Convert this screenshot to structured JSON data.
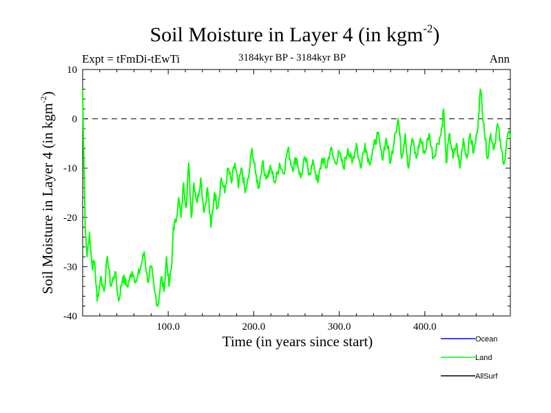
{
  "chart_data": {
    "type": "line",
    "title": "Soil Moisture in Layer 4 (in kgm",
    "title_superscript": "-2",
    "title_close": ")",
    "subtitle_left": "Expt = tFmDi-tEwTi",
    "subtitle_center": "3184kyr BP - 3184kyr BP",
    "subtitle_right": "Ann",
    "xlabel": "Time (in years since start)",
    "ylabel": "Soil Moisture in Layer 4 (in kgm",
    "ylabel_superscript": "-2",
    "ylabel_close": ")",
    "xlim": [
      0,
      500
    ],
    "ylim": [
      -40,
      10
    ],
    "x_ticks": [
      100,
      200,
      300,
      400
    ],
    "x_tick_labels": [
      "100.0",
      "200.0",
      "300.0",
      "400.0"
    ],
    "y_ticks": [
      10,
      0,
      -10,
      -20,
      -30,
      -40
    ],
    "y_tick_labels": [
      "10",
      "0",
      "-10",
      "-20",
      "-30",
      "-40"
    ],
    "reference_line": 0,
    "series": [
      {
        "name": "Ocean",
        "color": "#0000ff",
        "values": []
      },
      {
        "name": "Land",
        "color": "#00ff00",
        "anchors": [
          [
            0,
            6
          ],
          [
            1,
            -5
          ],
          [
            3,
            -22
          ],
          [
            5,
            -28
          ],
          [
            8,
            -23
          ],
          [
            11,
            -30
          ],
          [
            14,
            -29
          ],
          [
            17,
            -37
          ],
          [
            21,
            -32
          ],
          [
            25,
            -35
          ],
          [
            29,
            -28
          ],
          [
            33,
            -34
          ],
          [
            38,
            -31
          ],
          [
            42,
            -37
          ],
          [
            47,
            -32
          ],
          [
            52,
            -34
          ],
          [
            58,
            -31
          ],
          [
            63,
            -33
          ],
          [
            68,
            -30
          ],
          [
            72,
            -27
          ],
          [
            76,
            -33
          ],
          [
            80,
            -30
          ],
          [
            84,
            -35
          ],
          [
            88,
            -38
          ],
          [
            92,
            -32
          ],
          [
            95,
            -35
          ],
          [
            98,
            -28
          ],
          [
            101,
            -34
          ],
          [
            104,
            -30
          ],
          [
            106,
            -22
          ],
          [
            109,
            -21
          ],
          [
            112,
            -16
          ],
          [
            115,
            -20
          ],
          [
            118,
            -13
          ],
          [
            121,
            -18
          ],
          [
            124,
            -9
          ],
          [
            127,
            -20
          ],
          [
            130,
            -13
          ],
          [
            134,
            -17
          ],
          [
            138,
            -12
          ],
          [
            142,
            -19
          ],
          [
            146,
            -14
          ],
          [
            150,
            -22
          ],
          [
            154,
            -15
          ],
          [
            158,
            -18
          ],
          [
            162,
            -12
          ],
          [
            166,
            -15
          ],
          [
            170,
            -10
          ],
          [
            174,
            -13
          ],
          [
            178,
            -9
          ],
          [
            182,
            -14
          ],
          [
            186,
            -10
          ],
          [
            190,
            -15
          ],
          [
            194,
            -12
          ],
          [
            198,
            -6
          ],
          [
            202,
            -11
          ],
          [
            206,
            -14
          ],
          [
            210,
            -9
          ],
          [
            215,
            -12
          ],
          [
            220,
            -10
          ],
          [
            225,
            -13
          ],
          [
            230,
            -9
          ],
          [
            235,
            -11
          ],
          [
            240,
            -6
          ],
          [
            245,
            -10
          ],
          [
            250,
            -8
          ],
          [
            255,
            -12
          ],
          [
            260,
            -8
          ],
          [
            265,
            -11
          ],
          [
            270,
            -9
          ],
          [
            275,
            -13
          ],
          [
            280,
            -8
          ],
          [
            285,
            -10
          ],
          [
            290,
            -6
          ],
          [
            295,
            -9
          ],
          [
            300,
            -7
          ],
          [
            305,
            -10
          ],
          [
            310,
            -6
          ],
          [
            315,
            -9
          ],
          [
            320,
            -5
          ],
          [
            325,
            -10
          ],
          [
            330,
            -5
          ],
          [
            335,
            -9
          ],
          [
            340,
            -6
          ],
          [
            345,
            -3
          ],
          [
            350,
            -8
          ],
          [
            355,
            -4
          ],
          [
            360,
            -9
          ],
          [
            365,
            -3
          ],
          [
            369,
            0
          ],
          [
            373,
            -8
          ],
          [
            377,
            -3
          ],
          [
            381,
            -10
          ],
          [
            385,
            -4
          ],
          [
            390,
            -8
          ],
          [
            395,
            -4
          ],
          [
            400,
            -7
          ],
          [
            405,
            -3
          ],
          [
            410,
            -8
          ],
          [
            415,
            -5
          ],
          [
            419,
            -3
          ],
          [
            422,
            2
          ],
          [
            425,
            -9
          ],
          [
            429,
            -3
          ],
          [
            433,
            -8
          ],
          [
            437,
            -5
          ],
          [
            441,
            -10
          ],
          [
            445,
            -4
          ],
          [
            449,
            -8
          ],
          [
            453,
            -3
          ],
          [
            457,
            -7
          ],
          [
            461,
            -3
          ],
          [
            465,
            6
          ],
          [
            469,
            -1
          ],
          [
            473,
            -8
          ],
          [
            477,
            -3
          ],
          [
            481,
            -6
          ],
          [
            485,
            -1
          ],
          [
            489,
            -6
          ],
          [
            493,
            -9
          ],
          [
            497,
            -3
          ],
          [
            500,
            -4
          ]
        ]
      },
      {
        "name": "AllSurf",
        "color": "#000000",
        "values": []
      }
    ],
    "legend_position": "bottom-right"
  }
}
